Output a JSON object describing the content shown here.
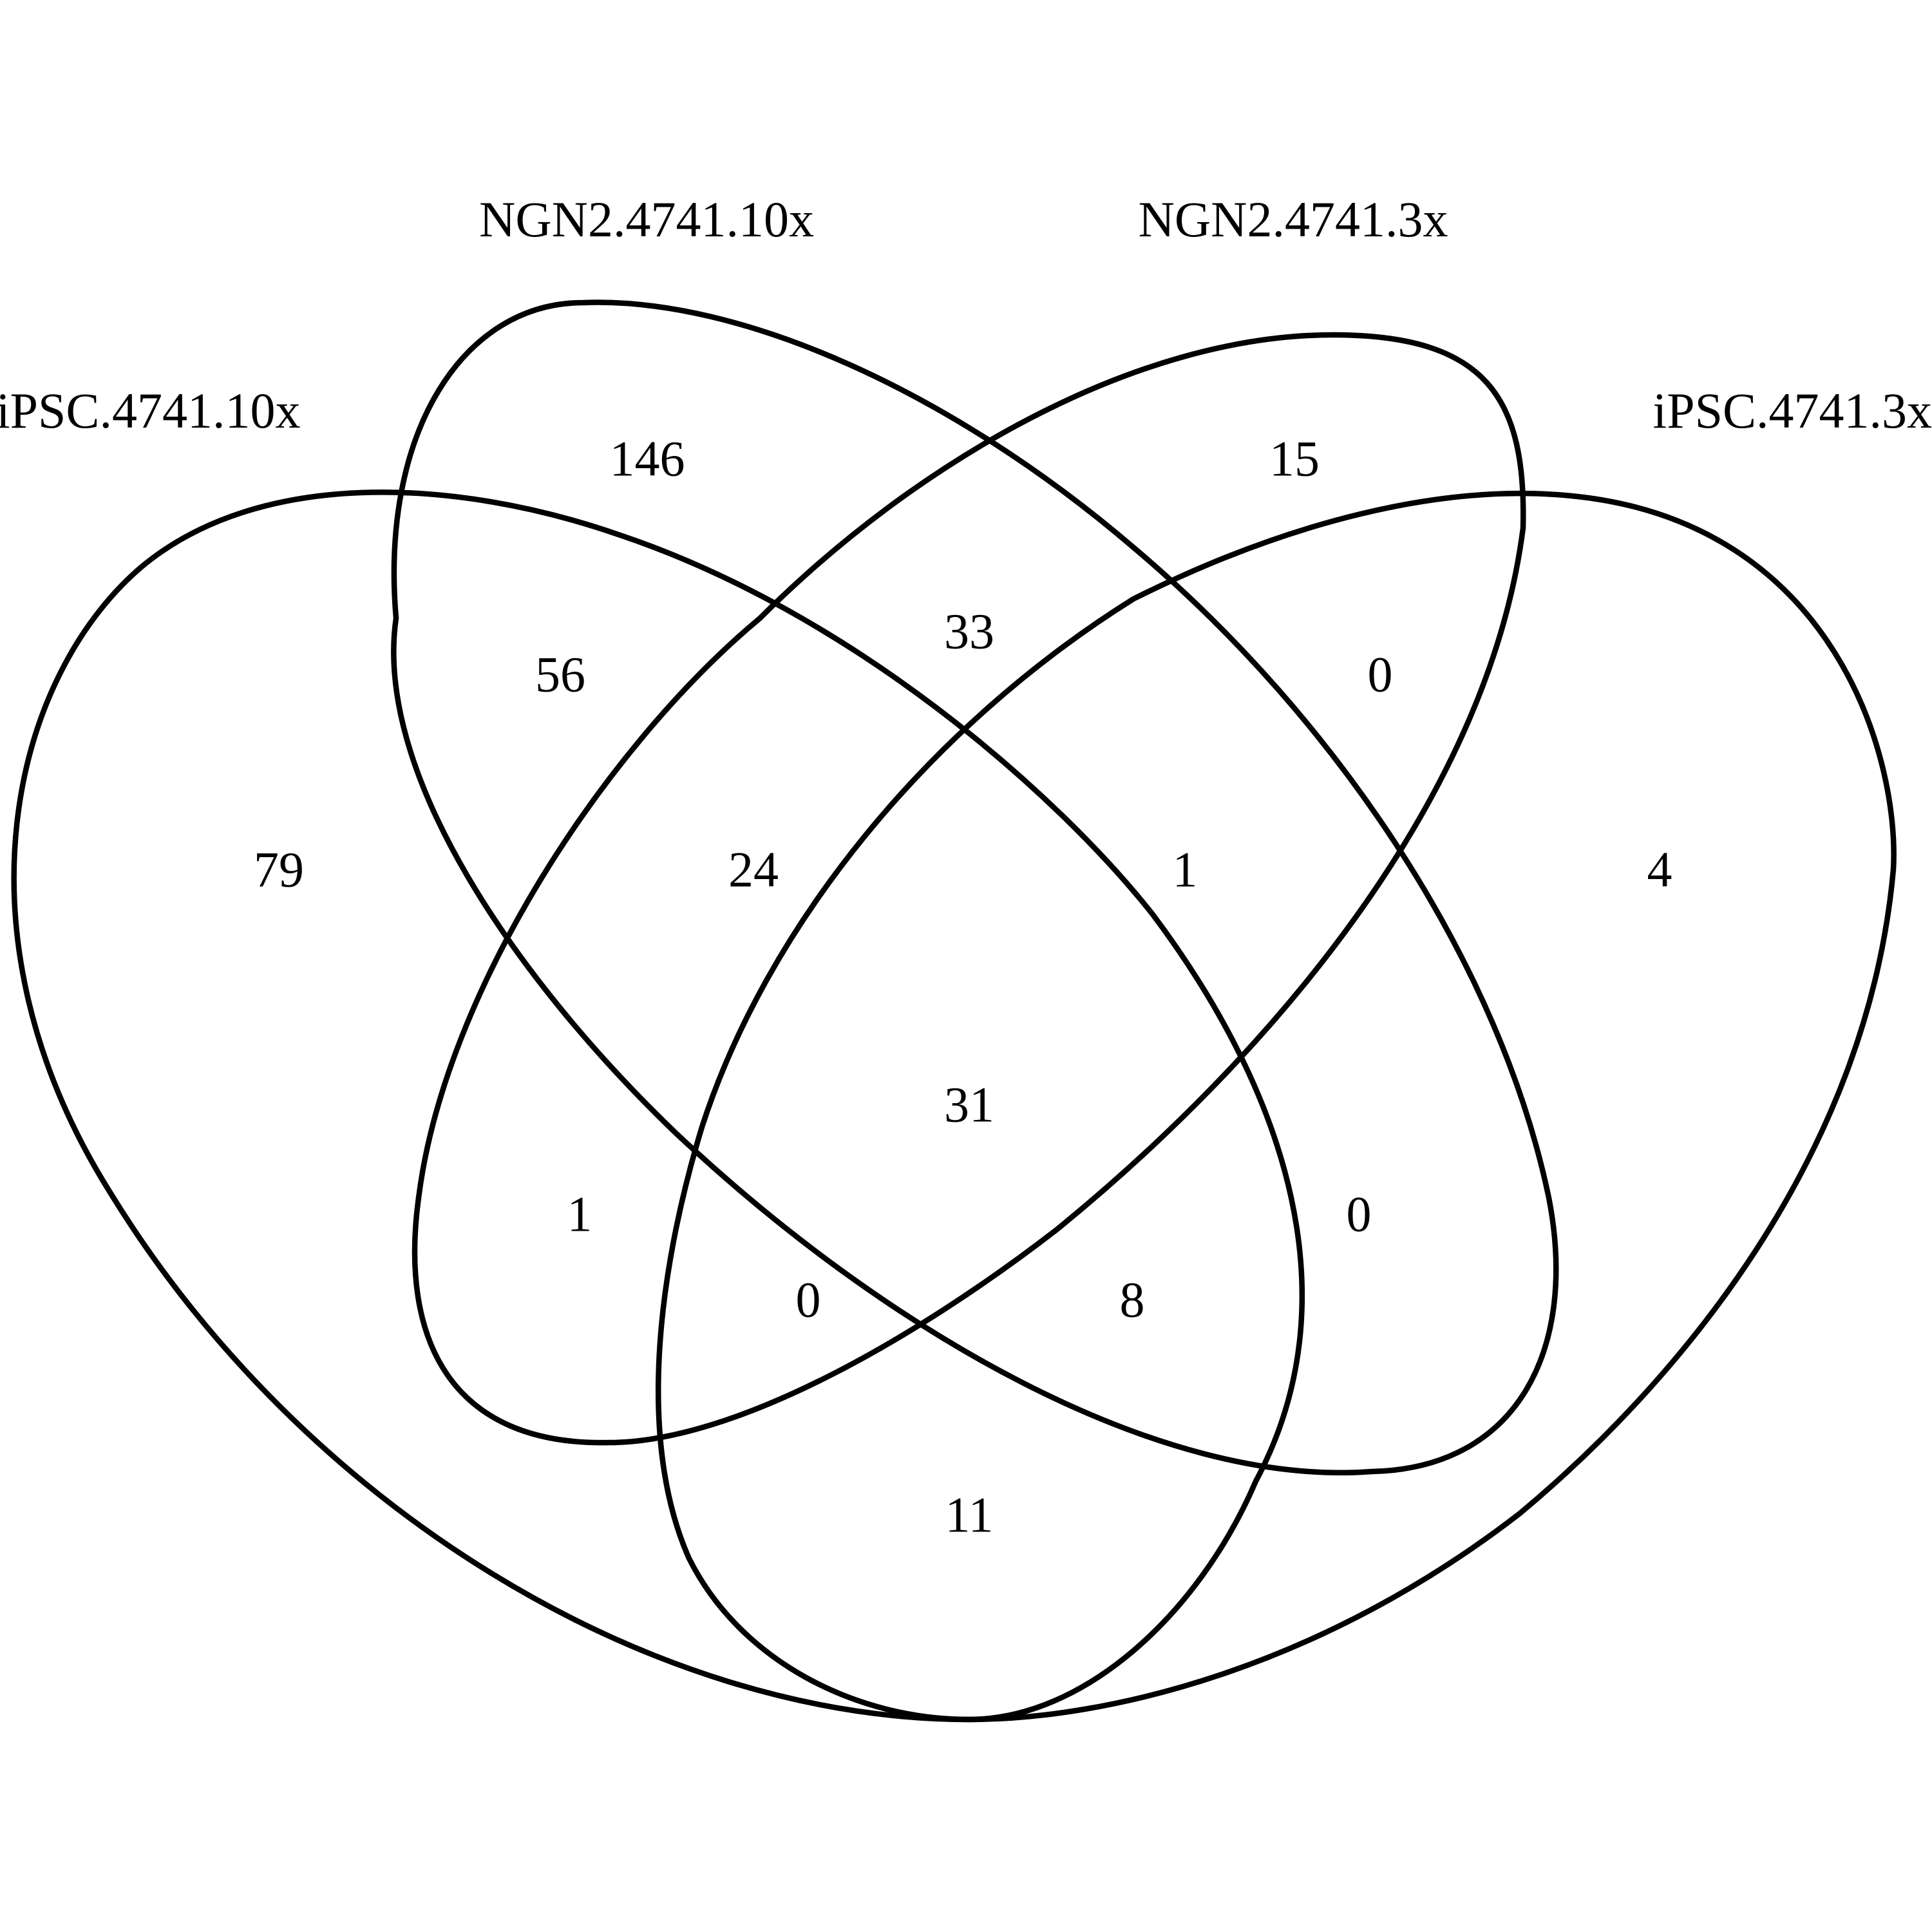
{
  "diagram": {
    "type": "venn-4",
    "stroke_color": "#000000",
    "background_color": "#ffffff",
    "sets": [
      {
        "id": "iPSC_10x",
        "label": "iPSC.4741.10x"
      },
      {
        "id": "NGN2_10x",
        "label": "NGN2.4741.10x"
      },
      {
        "id": "NGN2_3x",
        "label": "NGN2.4741.3x"
      },
      {
        "id": "iPSC_3x",
        "label": "iPSC.4741.3x"
      }
    ],
    "regions": [
      {
        "sets": [
          "NGN2_10x"
        ],
        "count": "146"
      },
      {
        "sets": [
          "NGN2_3x"
        ],
        "count": "15"
      },
      {
        "sets": [
          "iPSC_10x",
          "NGN2_10x"
        ],
        "count": "56"
      },
      {
        "sets": [
          "NGN2_10x",
          "NGN2_3x"
        ],
        "count": "33"
      },
      {
        "sets": [
          "NGN2_3x",
          "iPSC_3x"
        ],
        "count": "0"
      },
      {
        "sets": [
          "iPSC_10x"
        ],
        "count": "79"
      },
      {
        "sets": [
          "iPSC_10x",
          "NGN2_10x",
          "NGN2_3x"
        ],
        "count": "24"
      },
      {
        "sets": [
          "NGN2_10x",
          "NGN2_3x",
          "iPSC_3x"
        ],
        "count": "1"
      },
      {
        "sets": [
          "iPSC_3x"
        ],
        "count": "4"
      },
      {
        "sets": [
          "iPSC_10x",
          "NGN2_10x",
          "NGN2_3x",
          "iPSC_3x"
        ],
        "count": "31"
      },
      {
        "sets": [
          "iPSC_10x",
          "NGN2_3x"
        ],
        "count": "1"
      },
      {
        "sets": [
          "NGN2_10x",
          "iPSC_3x"
        ],
        "count": "0"
      },
      {
        "sets": [
          "iPSC_10x",
          "NGN2_3x",
          "iPSC_3x"
        ],
        "count": "0"
      },
      {
        "sets": [
          "iPSC_10x",
          "NGN2_10x",
          "iPSC_3x"
        ],
        "count": "8"
      },
      {
        "sets": [
          "iPSC_10x",
          "iPSC_3x"
        ],
        "count": "11"
      }
    ]
  }
}
